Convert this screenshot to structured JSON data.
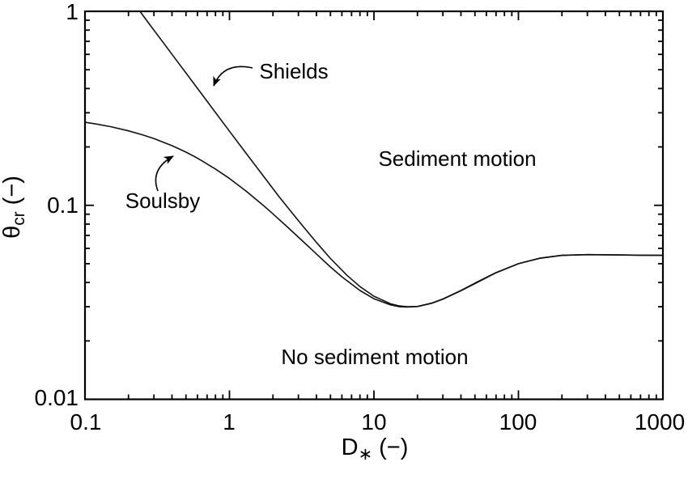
{
  "figure": {
    "background": "#ffffff",
    "line_color": "#111111"
  },
  "chart_data": {
    "type": "line",
    "title": "",
    "x_scale": "log",
    "y_scale": "log",
    "xlim": [
      0.1,
      1000
    ],
    "ylim": [
      0.01,
      1
    ],
    "grid": false,
    "legend": "none (labels drawn as arrowed annotations)",
    "xlabel_parts": [
      "D",
      "∗",
      " (−)"
    ],
    "ylabel_parts": [
      "θ",
      "cr",
      " (−)"
    ],
    "x_tick_values": [
      0.1,
      1,
      10,
      100,
      1000
    ],
    "x_tick_labels": [
      "0.1",
      "1",
      "10",
      "100",
      "1000"
    ],
    "y_tick_values": [
      1,
      0.1,
      0.01
    ],
    "y_tick_labels": [
      "1",
      "0.1",
      "0.01"
    ],
    "annotations": {
      "shields": "Shields",
      "soulsby": "Soulsby",
      "sediment_motion": "Sediment motion",
      "no_sediment_motion": "No sediment motion"
    },
    "series": [
      {
        "name": "Shields",
        "points": [
          [
            0.24,
            1.0
          ],
          [
            0.28,
            0.857
          ],
          [
            0.35,
            0.686
          ],
          [
            0.45,
            0.534
          ],
          [
            0.6,
            0.401
          ],
          [
            0.8,
            0.301
          ],
          [
            1,
            0.241
          ],
          [
            1.3,
            0.186
          ],
          [
            1.7,
            0.143
          ],
          [
            2.2,
            0.111
          ],
          [
            3,
            0.0833
          ],
          [
            4,
            0.0643
          ],
          [
            5,
            0.0532
          ],
          [
            6.5,
            0.0436
          ],
          [
            8,
            0.0381
          ],
          [
            10,
            0.034
          ],
          [
            13,
            0.0311
          ],
          [
            15,
            0.0303
          ],
          [
            17,
            0.03
          ],
          [
            20,
            0.0301
          ],
          [
            25,
            0.0312
          ],
          [
            30,
            0.0328
          ],
          [
            40,
            0.0363
          ],
          [
            50,
            0.0395
          ],
          [
            70,
            0.0449
          ],
          [
            100,
            0.05
          ],
          [
            140,
            0.0533
          ],
          [
            200,
            0.0552
          ],
          [
            300,
            0.0557
          ],
          [
            500,
            0.0555
          ],
          [
            700,
            0.0553
          ],
          [
            1000,
            0.0552
          ]
        ]
      },
      {
        "name": "Soulsby",
        "points": [
          [
            0.1,
            0.268
          ],
          [
            0.12,
            0.2624
          ],
          [
            0.15,
            0.2544
          ],
          [
            0.2,
            0.2421
          ],
          [
            0.25,
            0.231
          ],
          [
            0.3,
            0.2209
          ],
          [
            0.4,
            0.2031
          ],
          [
            0.5,
            0.1881
          ],
          [
            0.6,
            0.1751
          ],
          [
            0.8,
            0.1539
          ],
          [
            1,
            0.1375
          ],
          [
            1.3,
            0.1186
          ],
          [
            1.7,
            0.1005
          ],
          [
            2,
            0.0904
          ],
          [
            2.5,
            0.0777
          ],
          [
            3,
            0.0685
          ],
          [
            4,
            0.0561
          ],
          [
            5,
            0.0481
          ],
          [
            6,
            0.0428
          ],
          [
            8,
            0.0364
          ],
          [
            10,
            0.033
          ],
          [
            13,
            0.0307
          ],
          [
            15,
            0.03
          ],
          [
            17,
            0.0299
          ],
          [
            20,
            0.0301
          ],
          [
            25,
            0.0313
          ],
          [
            30,
            0.0329
          ],
          [
            40,
            0.0364
          ],
          [
            50,
            0.0397
          ],
          [
            70,
            0.045
          ],
          [
            100,
            0.05
          ],
          [
            140,
            0.0534
          ],
          [
            200,
            0.0552
          ],
          [
            300,
            0.0557
          ],
          [
            500,
            0.0555
          ],
          [
            700,
            0.0553
          ],
          [
            1000,
            0.0552
          ]
        ]
      }
    ]
  }
}
